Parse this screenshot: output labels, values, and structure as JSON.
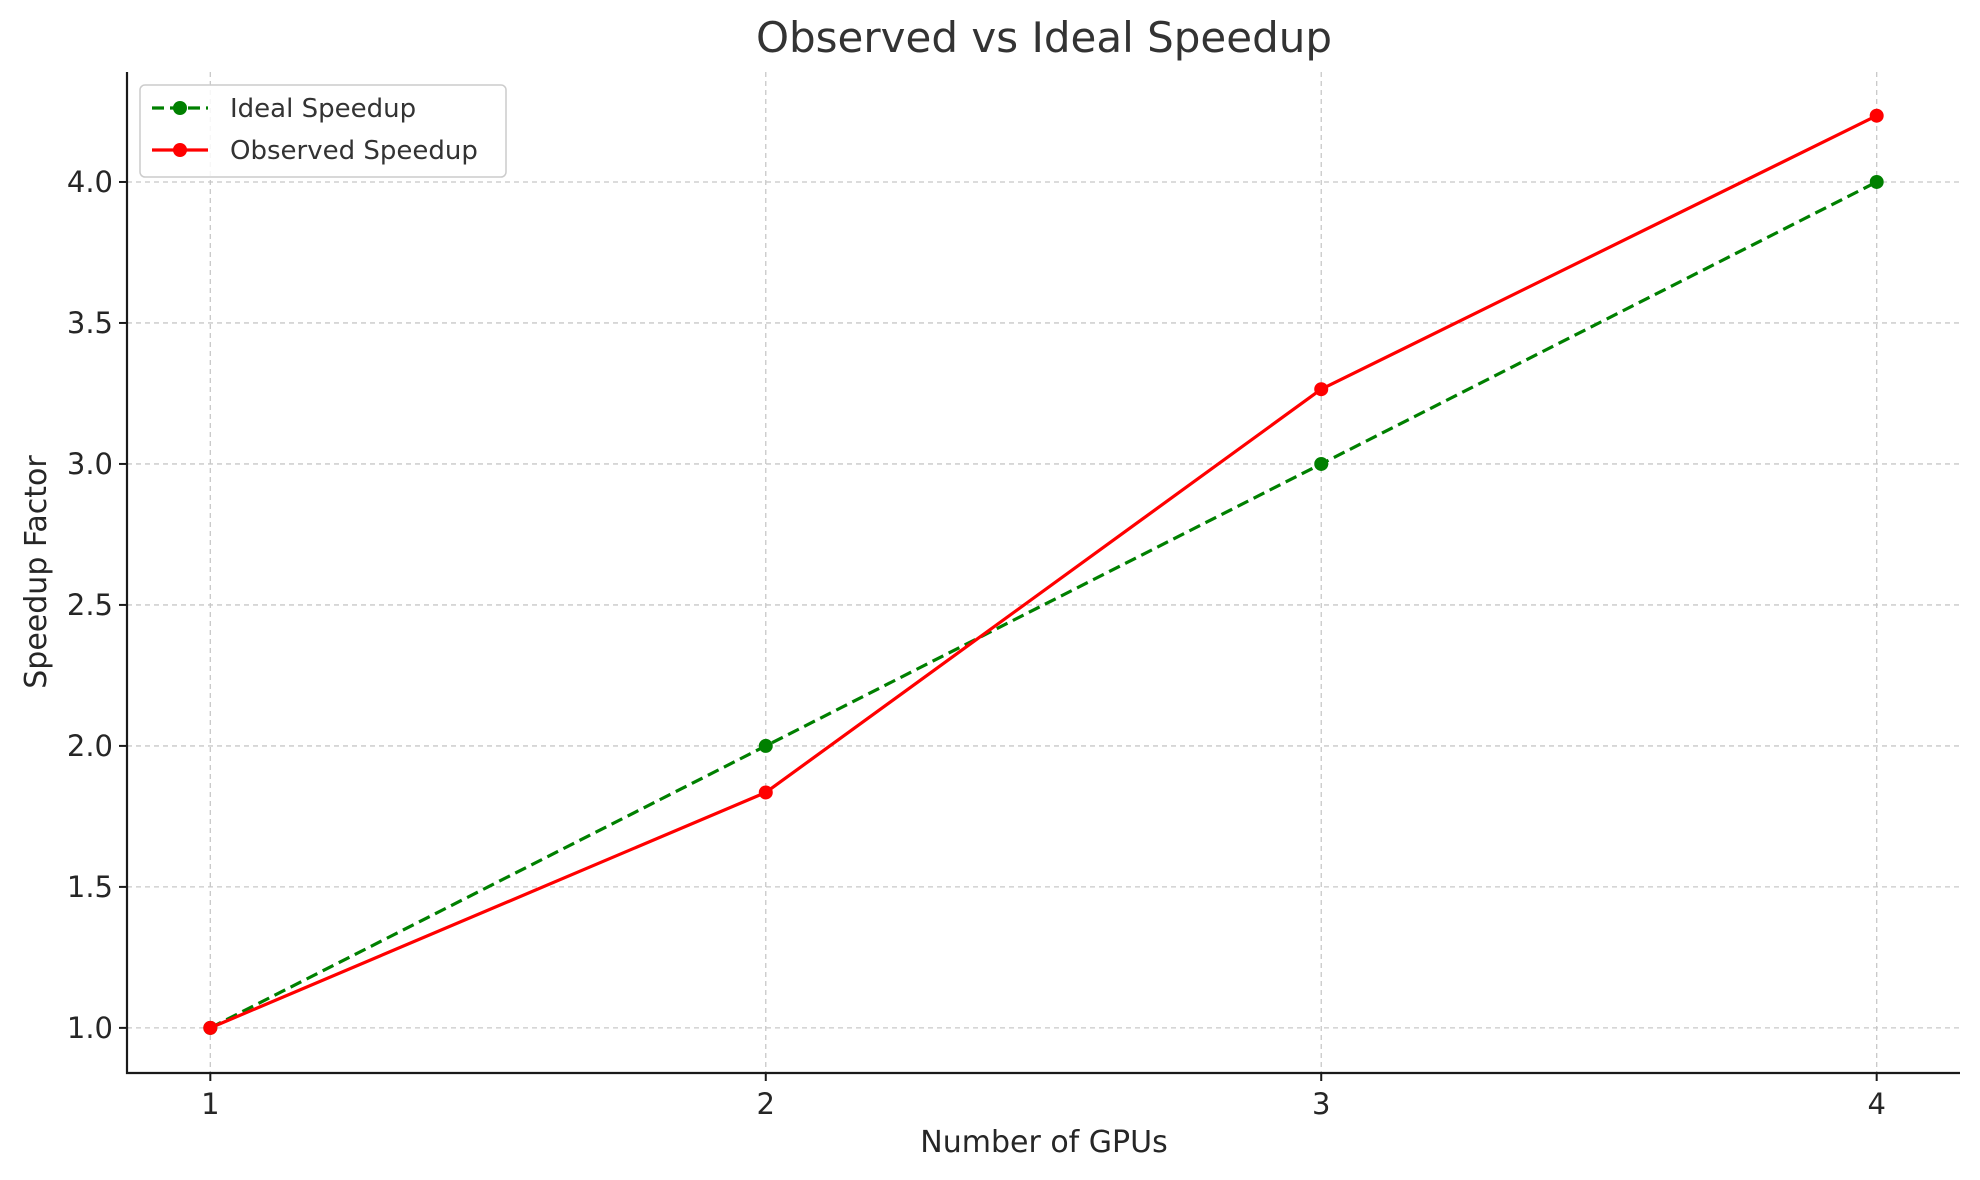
{
  "chart_data": {
    "type": "line",
    "title": "Observed vs Ideal Speedup",
    "xlabel": "Number of GPUs",
    "ylabel": "Speedup Factor",
    "x": [
      1,
      2,
      3,
      4
    ],
    "xlim": [
      0.85,
      4.15
    ],
    "ylim": [
      0.84,
      4.39
    ],
    "x_ticks": [
      "1",
      "2",
      "3",
      "4"
    ],
    "y_ticks": [
      "1.0",
      "1.5",
      "2.0",
      "2.5",
      "3.0",
      "3.5",
      "4.0"
    ],
    "grid": true,
    "legend_position": "top-left",
    "series": [
      {
        "name": "Ideal Speedup",
        "values": [
          1.0,
          2.0,
          3.0,
          4.0
        ],
        "color": "#008000",
        "line_style": "dashed",
        "marker": "circle"
      },
      {
        "name": "Observed Speedup",
        "values": [
          1.0,
          1.835,
          3.265,
          4.235
        ],
        "color": "#ff0000",
        "line_style": "solid",
        "marker": "circle"
      }
    ]
  }
}
